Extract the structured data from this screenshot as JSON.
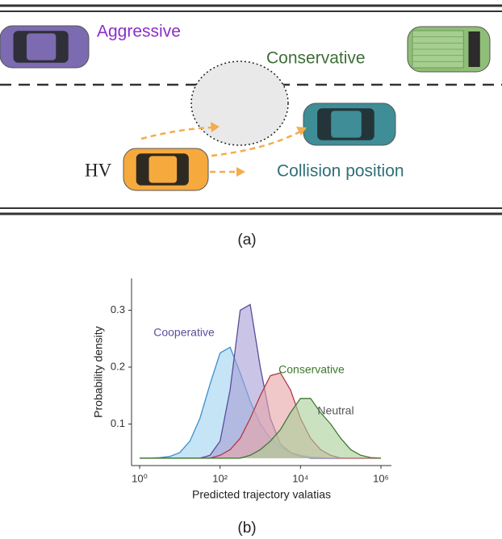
{
  "diagram": {
    "labels": {
      "aggressive": "Aggressive",
      "conservative": "Conservative",
      "hv": "HV",
      "collision": "Collision position"
    },
    "caption": "(a)"
  },
  "chart_data": {
    "type": "area",
    "caption": "(b)",
    "x_label": "Predicted trajectory valatias",
    "y_label": "Probability density",
    "log_x": true,
    "xlim": [
      1,
      1000000
    ],
    "xticks": [
      {
        "value": 1,
        "label": "10⁰"
      },
      {
        "value": 100,
        "label": "10²"
      },
      {
        "value": 10000,
        "label": "10⁴"
      },
      {
        "value": 1000000,
        "label": "10⁶"
      }
    ],
    "ylim": [
      0.027,
      0.356
    ],
    "yticks": [
      0.1,
      0.2,
      0.3
    ],
    "x": [
      1,
      1.78,
      3.16,
      5.62,
      10,
      17.8,
      31.6,
      56.2,
      100,
      178,
      316,
      562,
      1000,
      1780,
      3160,
      5620,
      10000,
      17800,
      31600,
      56200,
      100000,
      178000,
      316000,
      562000,
      1000000
    ],
    "series": [
      {
        "name": "Cooperative",
        "color": "#3b8fc9",
        "fill": "#9fd2ef",
        "label_color": "#5a4f9e",
        "values": [
          0.04,
          0.04,
          0.041,
          0.043,
          0.05,
          0.07,
          0.11,
          0.17,
          0.225,
          0.235,
          0.19,
          0.14,
          0.1,
          0.075,
          0.06,
          0.05,
          0.045,
          0.042,
          0.041,
          0.04,
          0.04,
          0.04,
          0.04,
          0.04,
          0.04
        ]
      },
      {
        "color": "#5b4a9a",
        "fill": "#a79fd6",
        "values": [
          0.04,
          0.04,
          0.04,
          0.04,
          0.04,
          0.04,
          0.04,
          0.045,
          0.07,
          0.16,
          0.3,
          0.31,
          0.2,
          0.11,
          0.065,
          0.05,
          0.043,
          0.04,
          0.04,
          0.04,
          0.04,
          0.04,
          0.04,
          0.04,
          0.04
        ]
      },
      {
        "name": "Conservative",
        "color": "#b03a48",
        "fill": "#e8a3a6",
        "label_color": "#3a7a2a",
        "values": [
          0.04,
          0.04,
          0.04,
          0.04,
          0.04,
          0.04,
          0.04,
          0.04,
          0.045,
          0.055,
          0.075,
          0.11,
          0.15,
          0.185,
          0.19,
          0.16,
          0.11,
          0.075,
          0.055,
          0.045,
          0.04,
          0.04,
          0.04,
          0.04,
          0.04
        ]
      },
      {
        "name": "Neutral",
        "color": "#3f7a34",
        "fill": "#a9cf98",
        "label_color": "#555555",
        "values": [
          0.04,
          0.04,
          0.04,
          0.04,
          0.04,
          0.04,
          0.04,
          0.04,
          0.04,
          0.04,
          0.04,
          0.045,
          0.055,
          0.07,
          0.09,
          0.12,
          0.145,
          0.145,
          0.12,
          0.1,
          0.075,
          0.055,
          0.045,
          0.041,
          0.04
        ]
      }
    ]
  }
}
